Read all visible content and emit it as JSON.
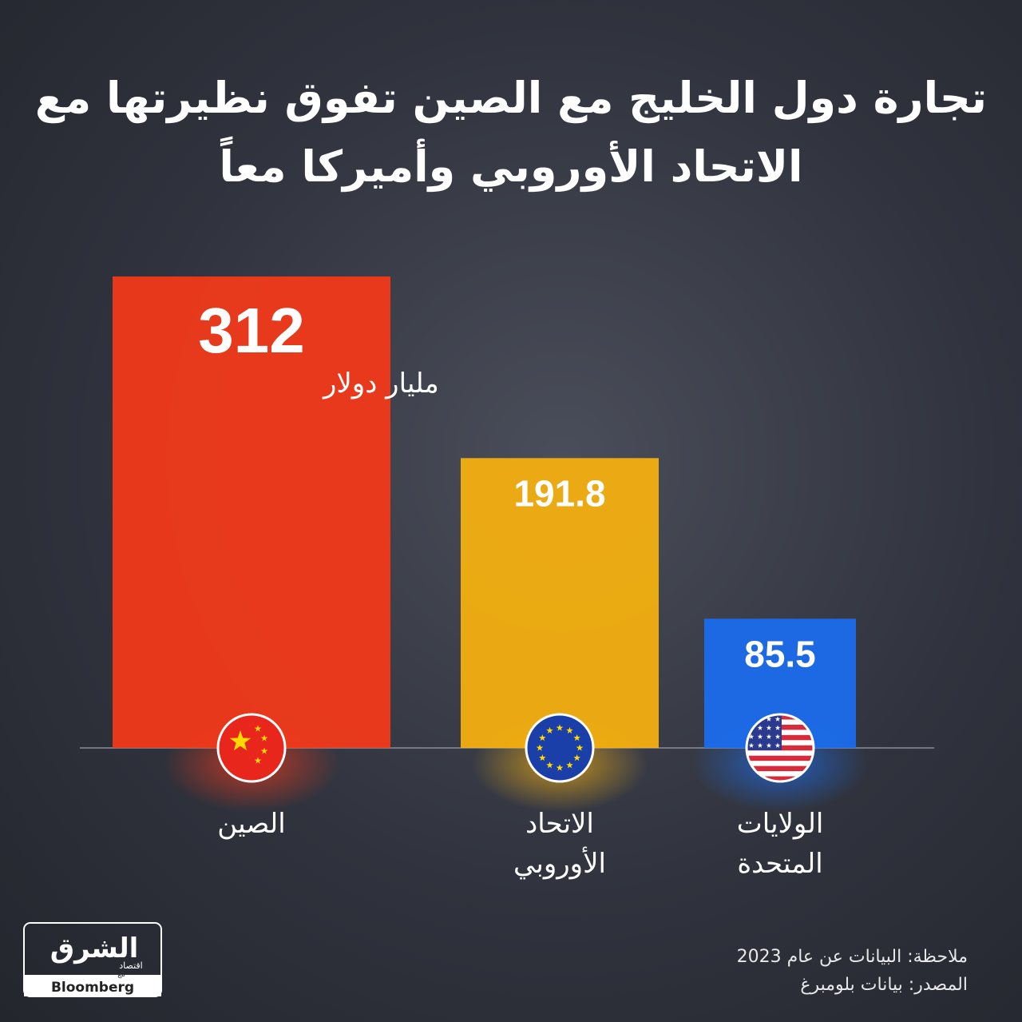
{
  "chart_data": {
    "type": "bar",
    "title": "تجارة دول الخليج مع الصين تفوق نظيرتها مع الاتحاد الأوروبي وأميركا معاً",
    "categories": [
      "الصين",
      "الاتحاد الأوروبي",
      "الولايات المتحدة"
    ],
    "values": [
      312,
      191.8,
      85.5
    ],
    "colors": [
      "#f5391a",
      "#f7b10e",
      "#1b6df0"
    ],
    "unit": "مليار دولار",
    "note": "ملاحظة: البيانات عن عام 2023",
    "source": "المصدر: بيانات بلومبرغ"
  },
  "logo": {
    "name": "الشرق",
    "sub": "اقتصاد",
    "with": "مع",
    "partner": "Bloomberg"
  }
}
